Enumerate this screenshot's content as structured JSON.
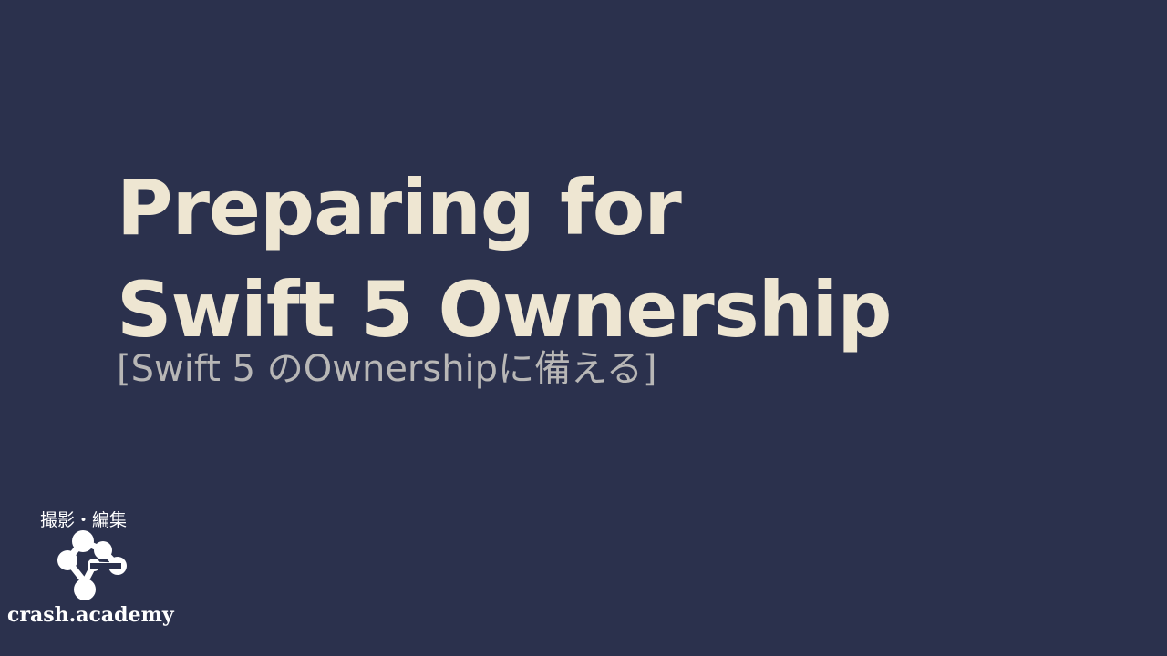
{
  "slide": {
    "title_line_1": "Preparing for",
    "title_line_2": "Swift 5 Ownership",
    "subtitle": "[Swift 5 のOwnershipに備える]"
  },
  "credit": {
    "label": "撮影・編集",
    "logo_icon": "molecule-network-icon",
    "brand_name": "crash.academy"
  },
  "colors": {
    "background": "#2b314d",
    "title": "#eee6d2",
    "subtitle": "#b8b7b6",
    "credit": "#ffffff"
  }
}
